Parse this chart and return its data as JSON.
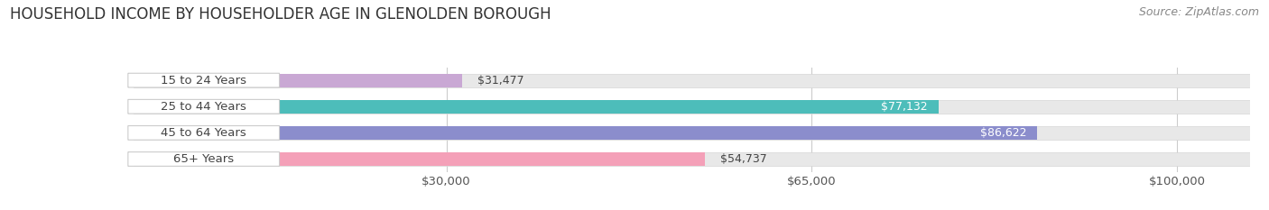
{
  "title": "HOUSEHOLD INCOME BY HOUSEHOLDER AGE IN GLENOLDEN BOROUGH",
  "source": "Source: ZipAtlas.com",
  "categories": [
    "15 to 24 Years",
    "25 to 44 Years",
    "45 to 64 Years",
    "65+ Years"
  ],
  "values": [
    31477,
    77132,
    86622,
    54737
  ],
  "bar_colors": [
    "#c9a8d4",
    "#4dbdba",
    "#8b8dcc",
    "#f4a0b8"
  ],
  "x_ticks": [
    30000,
    65000,
    100000
  ],
  "x_tick_labels": [
    "$30,000",
    "$65,000",
    "$100,000"
  ],
  "xlim_max": 107000,
  "background_color": "#ffffff",
  "bar_bg_color": "#e8e8e8",
  "bar_bg_edge_color": "#d5d5d5",
  "title_fontsize": 12,
  "source_fontsize": 9,
  "label_fontsize": 9.5,
  "value_fontsize": 9
}
